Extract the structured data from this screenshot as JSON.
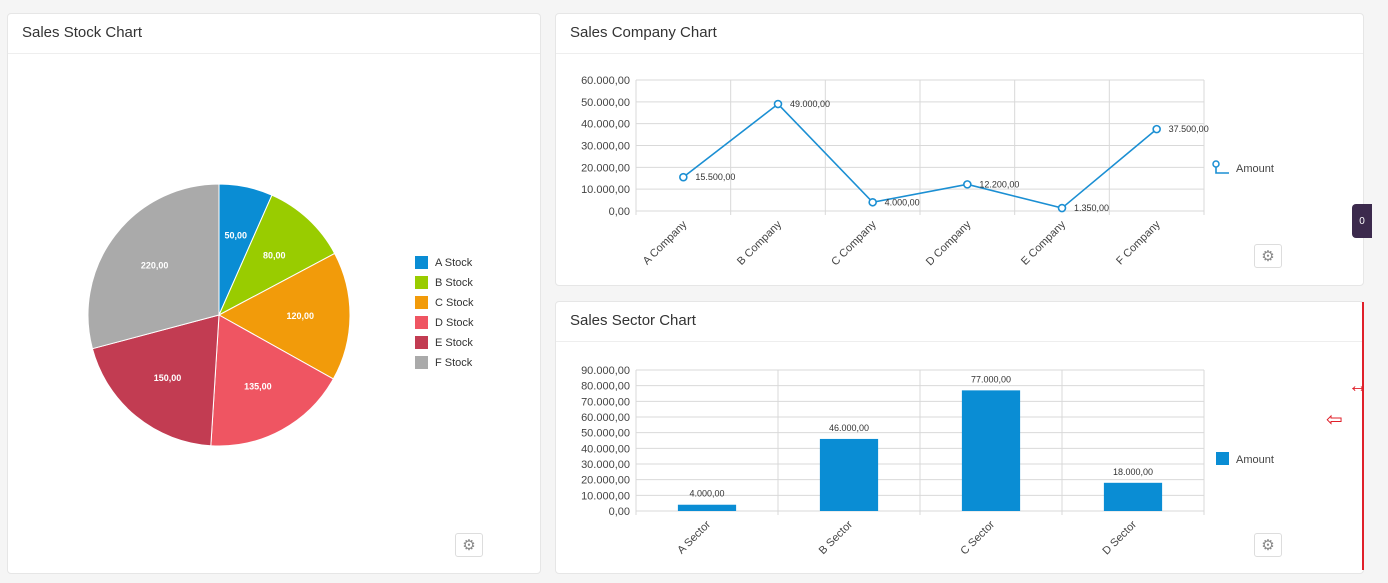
{
  "colors": {
    "line": "#1b8fd3",
    "bar": "#0a8dd4",
    "grid": "#d9d9d9",
    "annotation": "#e0202a"
  },
  "pie_panel": {
    "title": "Sales Stock Chart",
    "settings_icon": "gear-icon"
  },
  "line_panel": {
    "title": "Sales Company Chart",
    "legend": "Amount",
    "settings_icon": "gear-icon"
  },
  "bar_panel": {
    "title": "Sales Sector Chart",
    "legend": "Amount",
    "settings_icon": "gear-icon"
  },
  "side_badge": {
    "label": "0"
  },
  "annotations": {
    "resize_icon": "↔",
    "left_arrow_icon": "⇦"
  },
  "chart_data": [
    {
      "type": "pie",
      "title": "Sales Stock Chart",
      "legend_position": "right",
      "categories": [
        "A Stock",
        "B Stock",
        "C Stock",
        "D Stock",
        "E Stock",
        "F Stock"
      ],
      "values": [
        50,
        80,
        120,
        135,
        150,
        220
      ],
      "labels": [
        "50,00",
        "80,00",
        "120,00",
        "135,00",
        "150,00",
        "220,00"
      ],
      "colors": [
        "#0a8dd4",
        "#99cc00",
        "#f29b0a",
        "#ef5562",
        "#c23c52",
        "#aaaaaa"
      ]
    },
    {
      "type": "line",
      "title": "Sales Company Chart",
      "categories": [
        "A Company",
        "B Company",
        "C Company",
        "D Company",
        "E Company",
        "F Company"
      ],
      "series": [
        {
          "name": "Amount",
          "values": [
            15500,
            49000,
            4000,
            12200,
            1350,
            37500
          ],
          "labels": [
            "15.500,00",
            "49.000,00",
            "4.000,00",
            "12.200,00",
            "1.350,00",
            "37.500,00"
          ]
        }
      ],
      "ylim": [
        0,
        60000
      ],
      "yticks": [
        0,
        10000,
        20000,
        30000,
        40000,
        50000,
        60000
      ],
      "ytick_labels": [
        "0,00",
        "10.000,00",
        "20.000,00",
        "30.000,00",
        "40.000,00",
        "50.000,00",
        "60.000,00"
      ],
      "grid": true,
      "legend_position": "right"
    },
    {
      "type": "bar",
      "title": "Sales Sector Chart",
      "categories": [
        "A Sector",
        "B Sector",
        "C Sector",
        "D Sector"
      ],
      "series": [
        {
          "name": "Amount",
          "values": [
            4000,
            46000,
            77000,
            18000
          ],
          "labels": [
            "4.000,00",
            "46.000,00",
            "77.000,00",
            "18.000,00"
          ]
        }
      ],
      "ylim": [
        0,
        90000
      ],
      "yticks": [
        0,
        10000,
        20000,
        30000,
        40000,
        50000,
        60000,
        70000,
        80000,
        90000
      ],
      "ytick_labels": [
        "0,00",
        "10.000,00",
        "20.000,00",
        "30.000,00",
        "40.000,00",
        "50.000,00",
        "60.000,00",
        "70.000,00",
        "80.000,00",
        "90.000,00"
      ],
      "grid": true,
      "legend_position": "right"
    }
  ]
}
